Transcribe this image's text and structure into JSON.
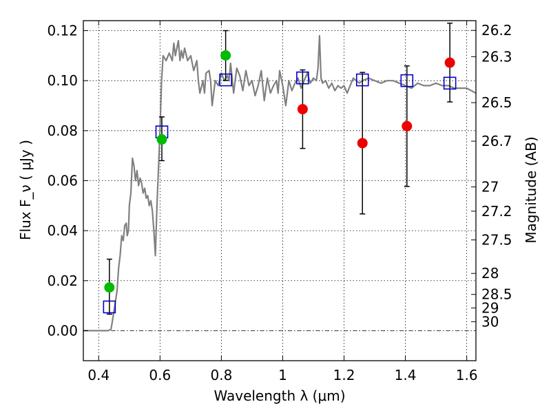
{
  "chart_data": {
    "type": "scatter",
    "xlabel": "Wavelength  λ (μm)",
    "ylabel": "Flux  F_ν  ( μJy )",
    "ylabel_right": "Magnitude (AB)",
    "xlim": [
      0.35,
      1.63
    ],
    "ylim": [
      -0.012,
      0.124
    ],
    "grid": true,
    "x_ticks": [
      0.4,
      0.6,
      0.8,
      1.0,
      1.2,
      1.4,
      1.6
    ],
    "x_tick_labels": [
      "0.4",
      "0.6",
      "0.8",
      "1",
      "1.2",
      "1.4",
      "1.6"
    ],
    "y_ticks": [
      0.0,
      0.02,
      0.04,
      0.06,
      0.08,
      0.1,
      0.12
    ],
    "y_tick_labels": [
      "0.00",
      "0.02",
      "0.04",
      "0.06",
      "0.08",
      "0.10",
      "0.12"
    ],
    "right_ticks": [
      {
        "label": "26.2",
        "flux": 0.1201
      },
      {
        "label": "26.3",
        "flux": 0.1096
      },
      {
        "label": "26.5",
        "flux": 0.0912
      },
      {
        "label": "26.7",
        "flux": 0.0758
      },
      {
        "label": "27",
        "flux": 0.0575
      },
      {
        "label": "27.2",
        "flux": 0.0478
      },
      {
        "label": "27.5",
        "flux": 0.0363
      },
      {
        "label": "28",
        "flux": 0.0229
      },
      {
        "label": "28.5",
        "flux": 0.0145
      },
      {
        "label": "29",
        "flux": 0.0091
      },
      {
        "label": "30",
        "flux": 0.0036
      }
    ],
    "model_spectrum": {
      "color": "#808080",
      "points": [
        [
          0.35,
          0.0
        ],
        [
          0.43,
          0.0
        ],
        [
          0.44,
          0.0005
        ],
        [
          0.445,
          0.004
        ],
        [
          0.455,
          0.012
        ],
        [
          0.46,
          0.016
        ],
        [
          0.465,
          0.025
        ],
        [
          0.47,
          0.03
        ],
        [
          0.475,
          0.038
        ],
        [
          0.48,
          0.036
        ],
        [
          0.485,
          0.042
        ],
        [
          0.49,
          0.043
        ],
        [
          0.493,
          0.038
        ],
        [
          0.497,
          0.04
        ],
        [
          0.5,
          0.05
        ],
        [
          0.505,
          0.055
        ],
        [
          0.51,
          0.069
        ],
        [
          0.515,
          0.066
        ],
        [
          0.52,
          0.06
        ],
        [
          0.525,
          0.064
        ],
        [
          0.53,
          0.058
        ],
        [
          0.535,
          0.061
        ],
        [
          0.54,
          0.059
        ],
        [
          0.545,
          0.055
        ],
        [
          0.55,
          0.057
        ],
        [
          0.555,
          0.053
        ],
        [
          0.56,
          0.054
        ],
        [
          0.565,
          0.05
        ],
        [
          0.57,
          0.052
        ],
        [
          0.575,
          0.048
        ],
        [
          0.58,
          0.04
        ],
        [
          0.585,
          0.03
        ],
        [
          0.59,
          0.05
        ],
        [
          0.6,
          0.08
        ],
        [
          0.605,
          0.1
        ],
        [
          0.61,
          0.11
        ],
        [
          0.62,
          0.108
        ],
        [
          0.63,
          0.111
        ],
        [
          0.64,
          0.108
        ],
        [
          0.645,
          0.115
        ],
        [
          0.65,
          0.11
        ],
        [
          0.66,
          0.116
        ],
        [
          0.665,
          0.108
        ],
        [
          0.67,
          0.112
        ],
        [
          0.675,
          0.109
        ],
        [
          0.68,
          0.113
        ],
        [
          0.69,
          0.108
        ],
        [
          0.7,
          0.11
        ],
        [
          0.71,
          0.104
        ],
        [
          0.72,
          0.108
        ],
        [
          0.725,
          0.1
        ],
        [
          0.73,
          0.095
        ],
        [
          0.74,
          0.1
        ],
        [
          0.745,
          0.095
        ],
        [
          0.75,
          0.103
        ],
        [
          0.76,
          0.104
        ],
        [
          0.765,
          0.1
        ],
        [
          0.77,
          0.09
        ],
        [
          0.78,
          0.1
        ],
        [
          0.79,
          0.098
        ],
        [
          0.8,
          0.103
        ],
        [
          0.81,
          0.1
        ],
        [
          0.82,
          0.102
        ],
        [
          0.825,
          0.1
        ],
        [
          0.83,
          0.107
        ],
        [
          0.84,
          0.095
        ],
        [
          0.85,
          0.105
        ],
        [
          0.86,
          0.102
        ],
        [
          0.87,
          0.096
        ],
        [
          0.88,
          0.104
        ],
        [
          0.89,
          0.098
        ],
        [
          0.9,
          0.1
        ],
        [
          0.91,
          0.094
        ],
        [
          0.92,
          0.098
        ],
        [
          0.93,
          0.104
        ],
        [
          0.935,
          0.098
        ],
        [
          0.94,
          0.092
        ],
        [
          0.95,
          0.101
        ],
        [
          0.96,
          0.095
        ],
        [
          0.97,
          0.098
        ],
        [
          0.98,
          0.1
        ],
        [
          0.985,
          0.095
        ],
        [
          0.99,
          0.104
        ],
        [
          1.0,
          0.098
        ],
        [
          1.01,
          0.09
        ],
        [
          1.02,
          0.1
        ],
        [
          1.03,
          0.096
        ],
        [
          1.04,
          0.099
        ],
        [
          1.05,
          0.101
        ],
        [
          1.06,
          0.097
        ],
        [
          1.07,
          0.1
        ],
        [
          1.08,
          0.103
        ],
        [
          1.09,
          0.099
        ],
        [
          1.1,
          0.101
        ],
        [
          1.11,
          0.1
        ],
        [
          1.115,
          0.105
        ],
        [
          1.12,
          0.118
        ],
        [
          1.125,
          0.101
        ],
        [
          1.13,
          0.099
        ],
        [
          1.14,
          0.1
        ],
        [
          1.15,
          0.097
        ],
        [
          1.16,
          0.099
        ],
        [
          1.17,
          0.096
        ],
        [
          1.18,
          0.098
        ],
        [
          1.19,
          0.097
        ],
        [
          1.2,
          0.098
        ],
        [
          1.21,
          0.095
        ],
        [
          1.22,
          0.098
        ],
        [
          1.23,
          0.101
        ],
        [
          1.24,
          0.1
        ],
        [
          1.25,
          0.099
        ],
        [
          1.26,
          0.1
        ],
        [
          1.28,
          0.101
        ],
        [
          1.3,
          0.1
        ],
        [
          1.32,
          0.099
        ],
        [
          1.34,
          0.1
        ],
        [
          1.36,
          0.1
        ],
        [
          1.38,
          0.099
        ],
        [
          1.4,
          0.098
        ],
        [
          1.42,
          0.097
        ],
        [
          1.44,
          0.099
        ],
        [
          1.46,
          0.098
        ],
        [
          1.48,
          0.098
        ],
        [
          1.5,
          0.099
        ],
        [
          1.52,
          0.098
        ],
        [
          1.54,
          0.098
        ],
        [
          1.56,
          0.097
        ],
        [
          1.58,
          0.097
        ],
        [
          1.6,
          0.097
        ],
        [
          1.63,
          0.095
        ]
      ]
    },
    "model_photometry": {
      "color": "#0000cc",
      "points": [
        {
          "x": 0.435,
          "y": 0.0095
        },
        {
          "x": 0.606,
          "y": 0.0795
        },
        {
          "x": 0.814,
          "y": 0.1003
        },
        {
          "x": 1.065,
          "y": 0.1011
        },
        {
          "x": 1.26,
          "y": 0.1003
        },
        {
          "x": 1.405,
          "y": 0.1
        },
        {
          "x": 1.545,
          "y": 0.099
        }
      ]
    },
    "detections": {
      "color": "#00bb00",
      "points": [
        {
          "x": 0.435,
          "y": 0.0173,
          "err_low": 0.0107,
          "err_high": 0.0113
        },
        {
          "x": 0.606,
          "y": 0.0765,
          "err_low": 0.0085,
          "err_high": 0.009
        },
        {
          "x": 0.814,
          "y": 0.1101,
          "err_low": 0.01,
          "err_high": 0.0099
        }
      ]
    },
    "non_detections": {
      "color": "#ee0000",
      "points": [
        {
          "x": 1.065,
          "y": 0.0886,
          "err_low": 0.0157,
          "err_high": 0.0157
        },
        {
          "x": 1.26,
          "y": 0.075,
          "err_low": 0.0283,
          "err_high": 0.0283
        },
        {
          "x": 1.405,
          "y": 0.0818,
          "err_low": 0.0241,
          "err_high": 0.0241
        },
        {
          "x": 1.545,
          "y": 0.1072,
          "err_low": 0.0157,
          "err_high": 0.0158
        }
      ]
    }
  }
}
